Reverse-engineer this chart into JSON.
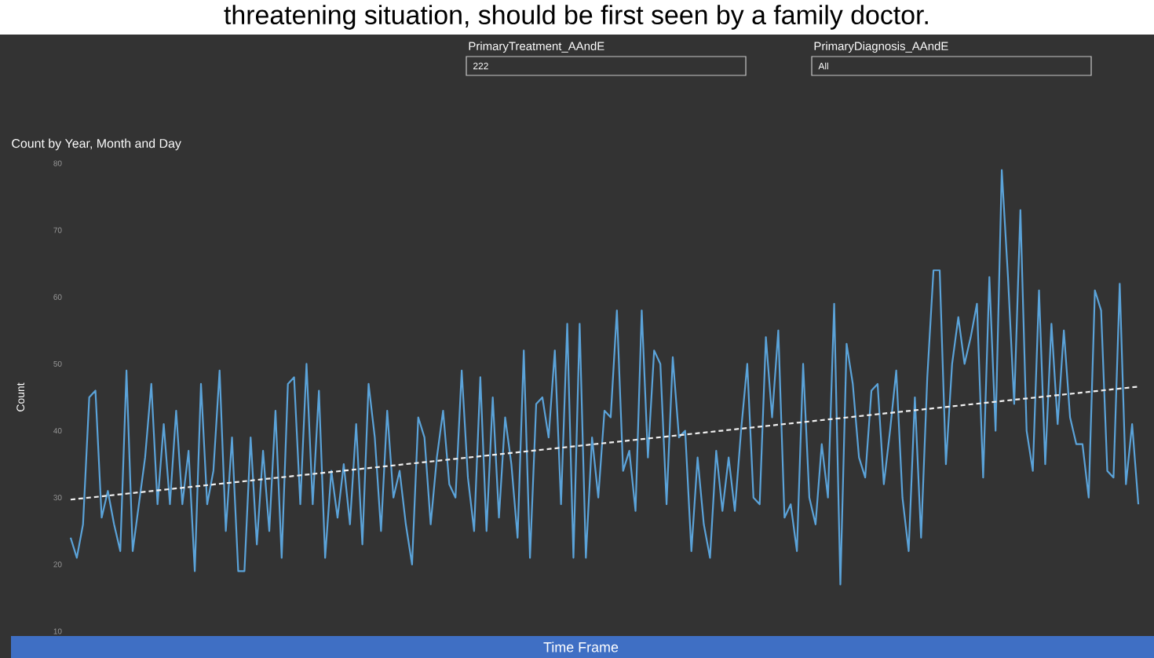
{
  "chart_data": {
    "type": "line",
    "title": "Count by Year, Month and Day",
    "xlabel": "Time Frame",
    "ylabel": "Count",
    "annotations": [
      "threatening situation, should be first seen by a family doctor.",
      "PrimaryTreatment_AAndE",
      "222",
      "PrimaryDiagnosis_AAndE",
      "All"
    ],
    "categories": [
      null,
      null,
      null,
      null,
      null,
      null,
      null,
      null,
      null,
      null,
      null,
      null,
      null,
      null,
      null,
      null,
      null,
      null,
      null,
      null,
      null,
      null,
      null,
      null,
      null,
      null,
      null,
      null,
      null,
      null,
      null,
      null,
      null,
      null,
      null,
      null,
      null,
      null,
      null,
      null,
      null,
      null,
      null,
      null,
      null,
      null,
      null,
      null,
      null,
      null,
      null,
      null,
      null,
      null,
      null,
      null,
      null,
      null,
      null,
      null,
      null,
      null,
      null,
      null,
      null,
      null,
      null,
      null,
      null,
      null,
      null,
      null,
      null,
      null,
      null,
      null,
      null,
      null,
      null,
      null,
      null,
      null,
      null,
      null,
      null,
      null,
      null,
      null,
      null,
      null,
      null,
      null,
      null,
      null,
      null,
      null,
      null,
      null,
      null,
      null,
      null,
      null,
      null,
      null,
      null,
      null,
      null,
      null,
      null,
      null,
      null,
      null,
      null,
      null,
      null,
      null,
      null,
      null,
      null,
      null,
      null,
      null,
      null,
      null,
      null,
      null,
      null,
      null,
      null,
      null,
      null,
      null,
      null,
      null,
      null,
      null,
      null,
      null,
      null,
      null,
      null,
      null,
      null,
      null,
      null,
      null,
      null,
      null,
      null,
      null,
      null,
      null,
      null,
      null,
      null,
      null,
      null,
      null,
      null,
      null,
      null,
      null,
      null,
      null,
      null,
      null,
      null,
      null,
      null,
      null,
      null,
      null,
      null
    ],
    "ylim": [
      10,
      80
    ],
    "yticks": [
      10,
      20,
      30,
      40,
      50,
      60,
      70,
      80
    ],
    "series": [
      {
        "color": "#5ba3d9",
        "values": [
          24,
          21,
          26,
          45,
          46,
          27,
          31,
          26,
          22,
          49,
          22,
          29,
          36,
          47,
          29,
          41,
          29,
          43,
          29,
          37,
          19,
          47,
          29,
          34,
          49,
          25,
          39,
          19,
          19,
          39,
          23,
          37,
          25,
          43,
          21,
          47,
          48,
          29,
          50,
          29,
          46,
          21,
          34,
          27,
          35,
          26,
          41,
          23,
          47,
          39,
          25,
          43,
          30,
          34,
          26,
          20,
          42,
          39,
          26,
          36,
          43,
          32,
          30,
          49,
          33,
          25,
          48,
          25,
          45,
          27,
          42,
          35,
          24,
          52,
          21,
          44,
          45,
          39,
          52,
          29,
          56,
          21,
          56,
          21,
          39,
          30,
          43,
          42,
          58,
          34,
          37,
          28,
          58,
          36,
          52,
          50,
          29,
          51,
          39,
          40,
          22,
          36,
          26,
          21,
          37,
          28,
          36,
          28,
          40,
          50,
          30,
          29,
          54,
          42,
          55,
          27,
          29,
          22,
          50,
          30,
          26,
          38,
          30,
          59,
          17,
          53,
          47,
          36,
          33,
          46,
          47,
          32,
          40,
          49,
          30,
          22,
          45,
          24,
          48,
          64,
          64,
          35,
          50,
          57,
          50,
          54,
          59,
          33,
          63,
          40,
          79,
          63,
          44,
          73,
          40,
          34,
          61,
          35,
          56,
          41,
          55,
          42,
          38,
          38,
          30,
          61,
          58,
          34,
          33,
          62,
          32,
          41,
          29
        ]
      },
      {
        "type": "line",
        "color": "#f0f0f0",
        "line_style": "dashed",
        "values": [
          29.7,
          null,
          null,
          null,
          null,
          null,
          null,
          null,
          null,
          null,
          null,
          null,
          null,
          null,
          null,
          null,
          null,
          null,
          null,
          null,
          null,
          null,
          null,
          null,
          null,
          null,
          null,
          null,
          null,
          null,
          null,
          null,
          null,
          null,
          null,
          null,
          null,
          null,
          null,
          null,
          null,
          null,
          null,
          null,
          null,
          null,
          null,
          null,
          null,
          null,
          null,
          null,
          null,
          null,
          null,
          null,
          null,
          null,
          null,
          null,
          null,
          null,
          null,
          null,
          null,
          null,
          null,
          null,
          null,
          null,
          null,
          null,
          null,
          null,
          null,
          null,
          null,
          null,
          null,
          null,
          null,
          null,
          null,
          null,
          null,
          null,
          null,
          null,
          null,
          null,
          null,
          null,
          null,
          null,
          null,
          null,
          null,
          null,
          null,
          null,
          null,
          null,
          null,
          null,
          null,
          null,
          null,
          null,
          null,
          null,
          null,
          null,
          null,
          null,
          null,
          null,
          null,
          null,
          null,
          null,
          null,
          null,
          null,
          null,
          null,
          null,
          null,
          null,
          null,
          null,
          null,
          null,
          null,
          null,
          null,
          null,
          null,
          null,
          null,
          null,
          null,
          null,
          null,
          null,
          null,
          null,
          null,
          null,
          null,
          null,
          null,
          null,
          null,
          null,
          null,
          null,
          null,
          null,
          null,
          null,
          null,
          null,
          null,
          null,
          null,
          null,
          null,
          null,
          null,
          null,
          null,
          null,
          46.6
        ]
      }
    ]
  }
}
